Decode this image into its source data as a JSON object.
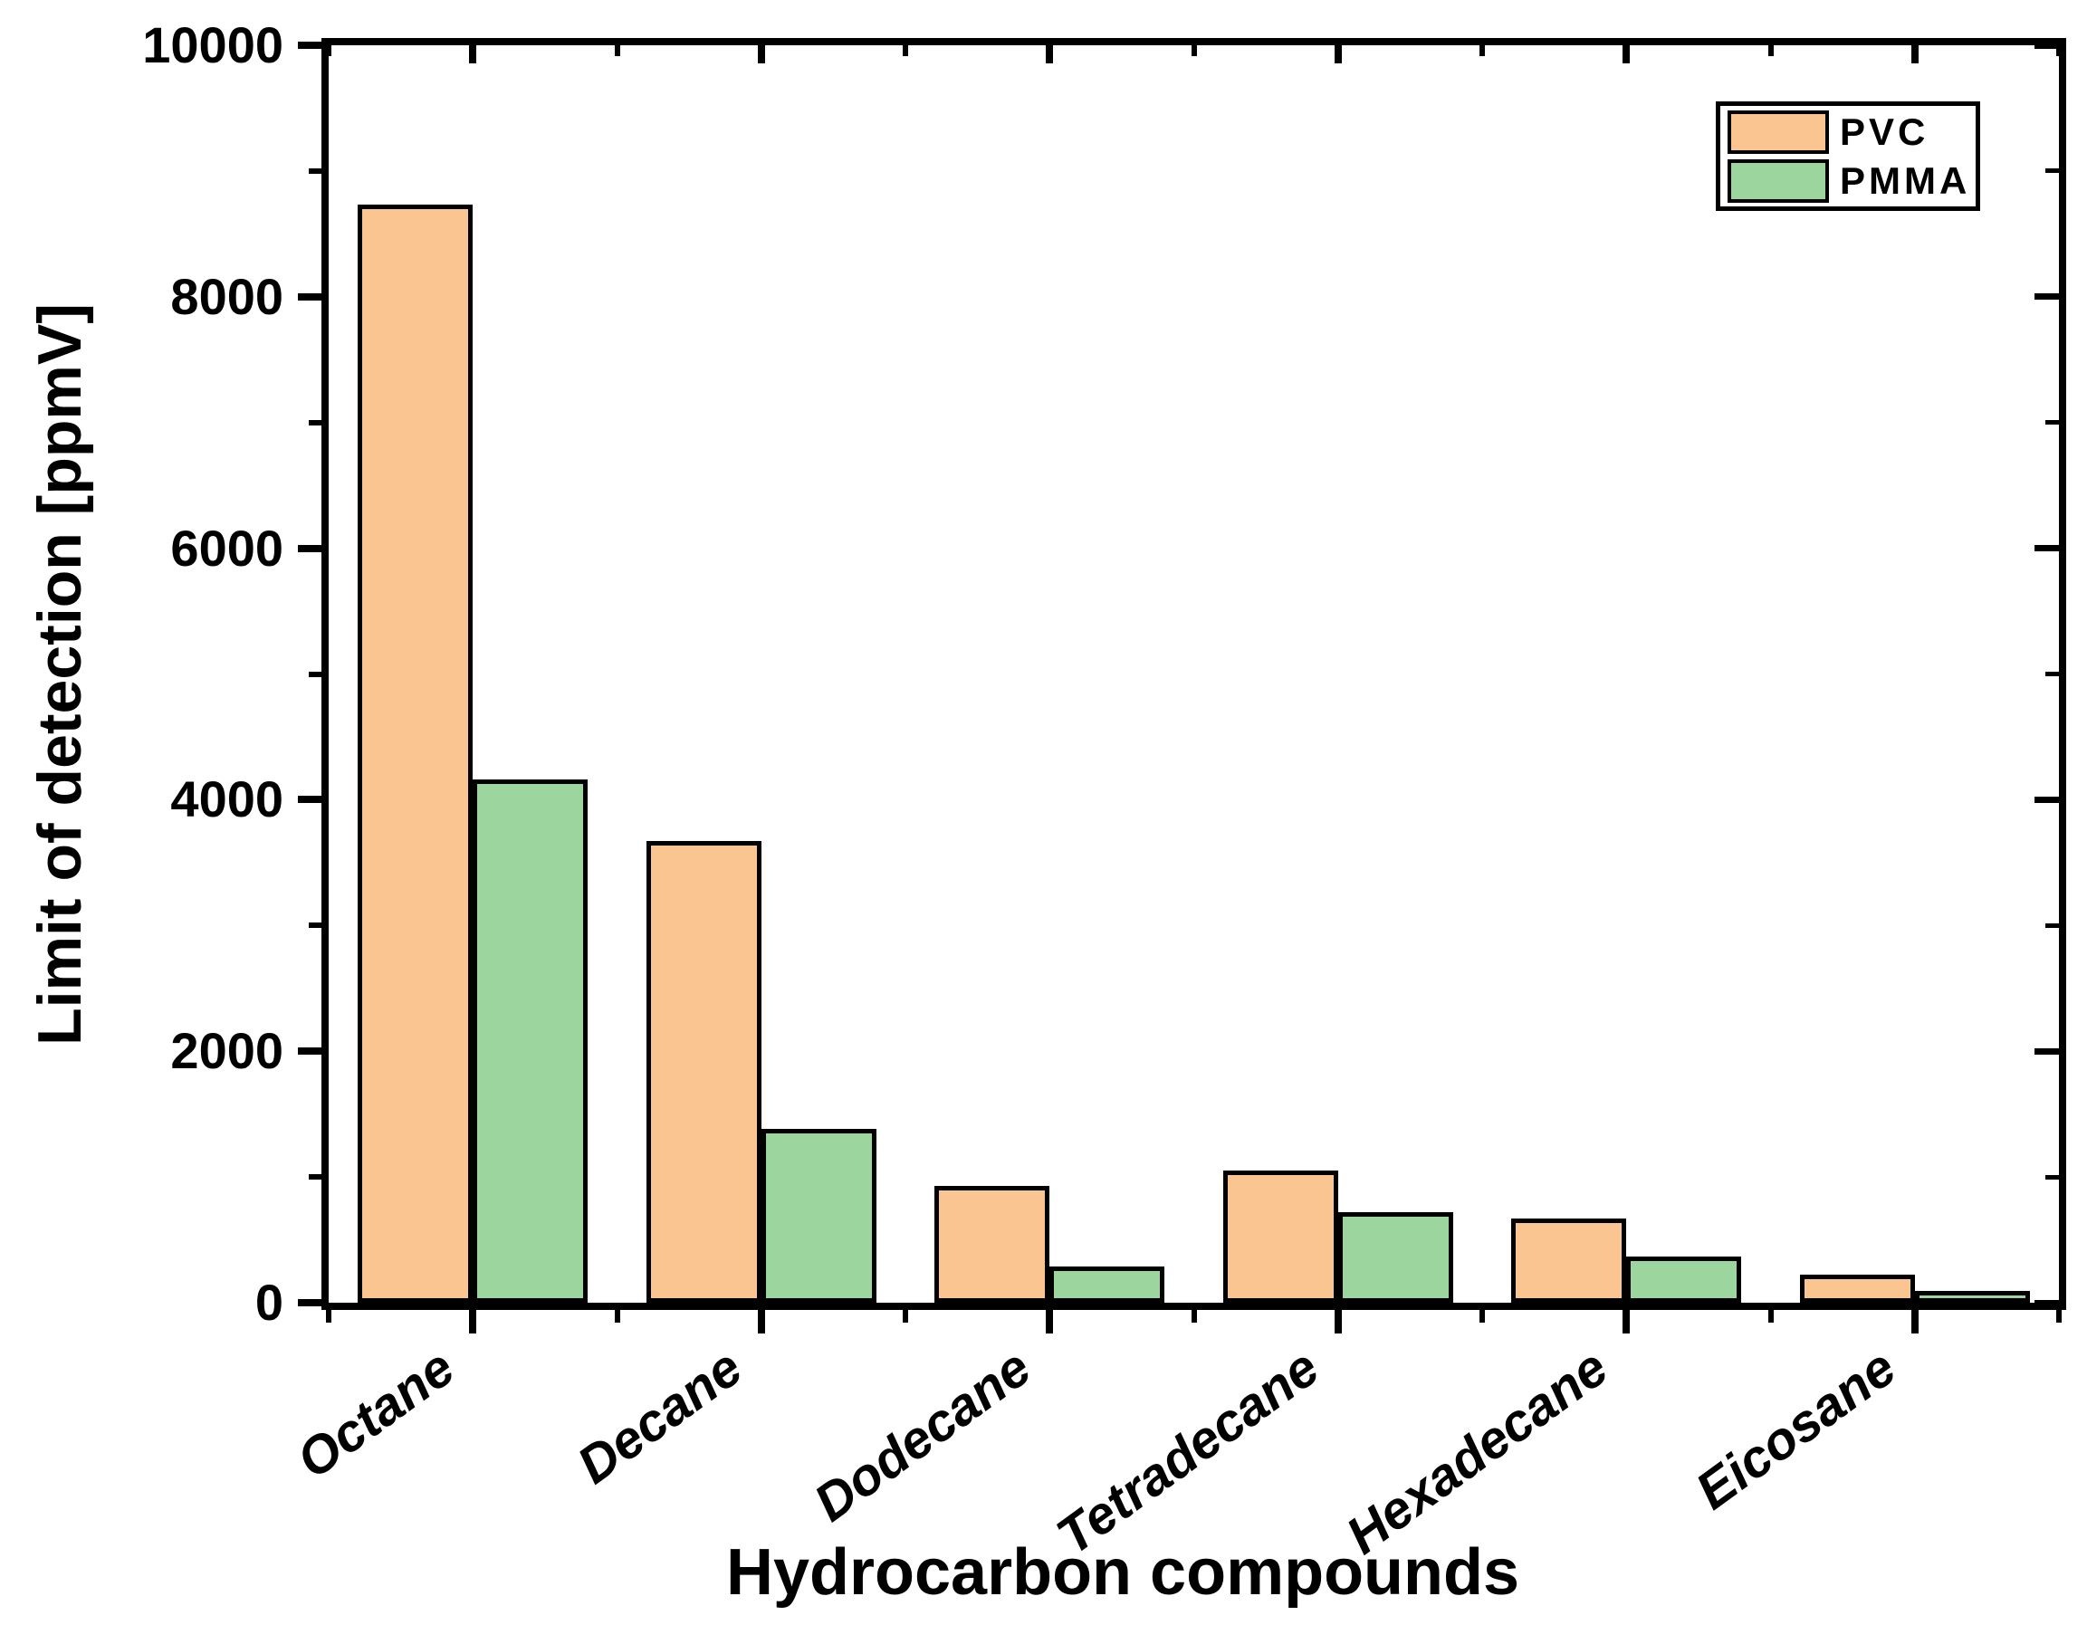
{
  "chart_data": {
    "type": "bar",
    "title": "",
    "xlabel": "Hydrocarbon compounds",
    "ylabel": "Limit of detection [ppmV]",
    "categories": [
      "Octane",
      "Decane",
      "Dodecane",
      "Tetradecane",
      "Hexadecane",
      "Eicosane"
    ],
    "series": [
      {
        "name": "PVC",
        "color": "#FBC592",
        "values": [
          8730,
          3670,
          930,
          1050,
          670,
          220
        ]
      },
      {
        "name": "PMMA",
        "color": "#9CD59D",
        "values": [
          4160,
          1380,
          290,
          720,
          370,
          95
        ]
      }
    ],
    "ylim": [
      0,
      10000
    ],
    "yticks": [
      0,
      2000,
      4000,
      6000,
      8000,
      10000
    ],
    "yticks_minor": [
      1000,
      3000,
      5000,
      7000,
      9000
    ],
    "grid": false,
    "legend_position": "top-right",
    "bar_border_color": "#000000",
    "axis_color": "#000000",
    "background_color": "#FFFFFF"
  }
}
